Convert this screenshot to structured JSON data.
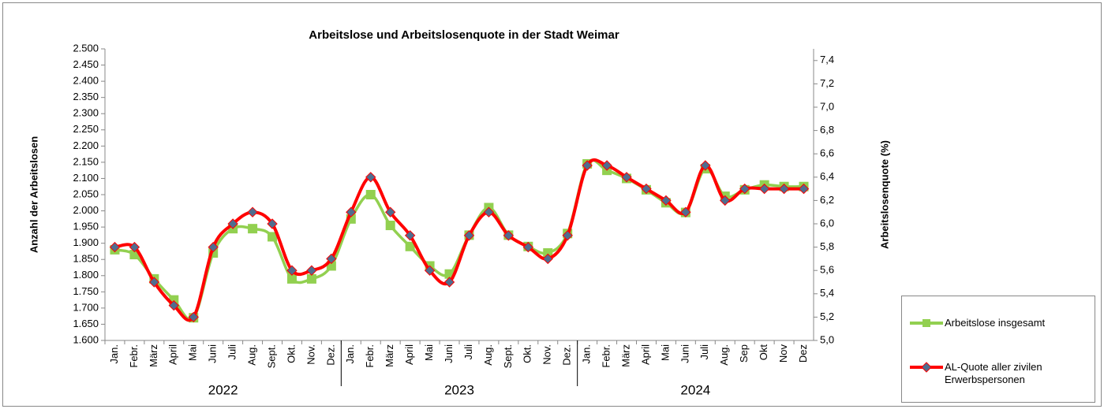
{
  "chart_data": {
    "type": "line",
    "title": "Arbeitslose und Arbeitslosenquote in der Stadt Weimar",
    "y_label": "Anzahl der Arbeitslosen",
    "y2_label": "Arbeitslosenquote (%)",
    "categories": [
      "Jan.",
      "Febr.",
      "März",
      "April",
      "Mai",
      "Juni",
      "Juli",
      "Aug.",
      "Sept.",
      "Okt.",
      "Nov.",
      "Dez.",
      "Jan.",
      "Febr.",
      "März",
      "April",
      "Mai",
      "Juni",
      "Juli",
      "Aug.",
      "Sept.",
      "Okt.",
      "Nov.",
      "Dez.",
      "Jan.",
      "Febr.",
      "März",
      "April",
      "Mai",
      "Juni",
      "Juli",
      "Aug.",
      "Sep",
      "Okt",
      "Nov",
      "Dez"
    ],
    "x_groups": [
      "2022",
      "2023",
      "2024"
    ],
    "ylim": [
      1600,
      2500
    ],
    "yticks": [
      {
        "value": 1600,
        "label": "1.600"
      },
      {
        "value": 1650,
        "label": "1.650"
      },
      {
        "value": 1700,
        "label": "1.700"
      },
      {
        "value": 1750,
        "label": "1.750"
      },
      {
        "value": 1800,
        "label": "1.800"
      },
      {
        "value": 1850,
        "label": "1.850"
      },
      {
        "value": 1900,
        "label": "1.900"
      },
      {
        "value": 1950,
        "label": "1.950"
      },
      {
        "value": 2000,
        "label": "2.000"
      },
      {
        "value": 2050,
        "label": "2.050"
      },
      {
        "value": 2100,
        "label": "2.100"
      },
      {
        "value": 2150,
        "label": "2.150"
      },
      {
        "value": 2200,
        "label": "2.200"
      },
      {
        "value": 2250,
        "label": "2.250"
      },
      {
        "value": 2300,
        "label": "2.300"
      },
      {
        "value": 2350,
        "label": "2.350"
      },
      {
        "value": 2400,
        "label": "2.400"
      },
      {
        "value": 2450,
        "label": "2.450"
      },
      {
        "value": 2500,
        "label": "2.500"
      }
    ],
    "y2lim": [
      5.0,
      7.5
    ],
    "y2ticks": [
      {
        "value": 5.0,
        "label": "5,0"
      },
      {
        "value": 5.2,
        "label": "5,2"
      },
      {
        "value": 5.4,
        "label": "5,4"
      },
      {
        "value": 5.6,
        "label": "5,6"
      },
      {
        "value": 5.8,
        "label": "5,8"
      },
      {
        "value": 6.0,
        "label": "6,0"
      },
      {
        "value": 6.2,
        "label": "6,2"
      },
      {
        "value": 6.4,
        "label": "6,4"
      },
      {
        "value": 6.6,
        "label": "6,6"
      },
      {
        "value": 6.8,
        "label": "6,8"
      },
      {
        "value": 7.0,
        "label": "7,0"
      },
      {
        "value": 7.2,
        "label": "7,2"
      },
      {
        "value": 7.4,
        "label": "7,4"
      }
    ],
    "series": [
      {
        "name": "Arbeitslose insgesamt",
        "color": "#92d050",
        "values": [
          1880,
          1865,
          1790,
          1725,
          1670,
          1870,
          1945,
          1945,
          1920,
          1790,
          1790,
          1830,
          1975,
          2050,
          1955,
          1890,
          1830,
          1805,
          1925,
          2010,
          1925,
          1890,
          1870,
          1930,
          2145,
          2125,
          2100,
          2065,
          2025,
          1995,
          2130,
          2045,
          2065,
          2080,
          2075,
          2075
        ]
      },
      {
        "name": "AL-Quote aller zivilen Erwerbspersonen",
        "color": "#ff0000",
        "axis": "y2",
        "values": [
          5.8,
          5.8,
          5.5,
          5.3,
          5.2,
          5.8,
          6.0,
          6.1,
          6.0,
          5.6,
          5.6,
          5.7,
          6.1,
          6.4,
          6.1,
          5.9,
          5.6,
          5.5,
          5.9,
          6.1,
          5.9,
          5.8,
          5.7,
          5.9,
          6.5,
          6.5,
          6.4,
          6.3,
          6.2,
          6.1,
          6.5,
          6.2,
          6.3,
          6.3,
          6.3,
          6.3
        ]
      }
    ]
  }
}
